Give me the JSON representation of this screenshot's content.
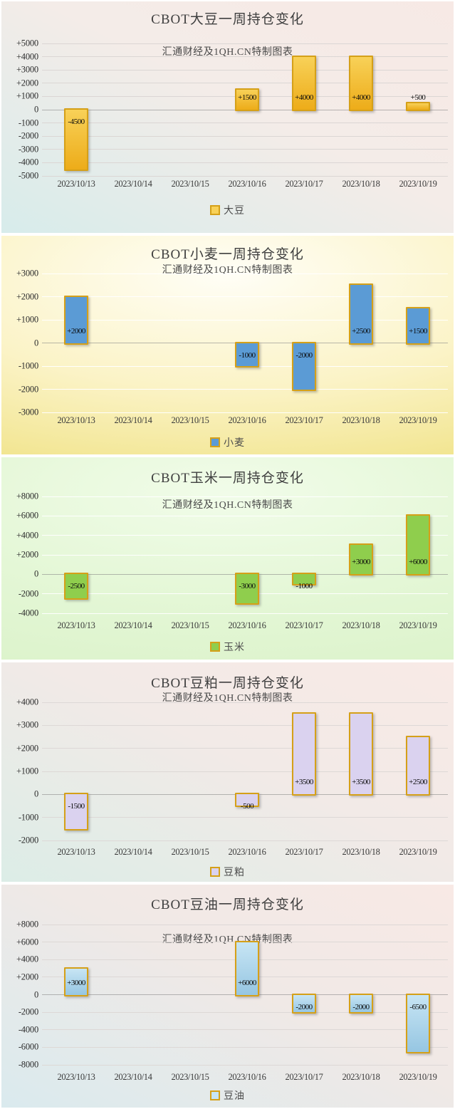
{
  "source_note": "汇通财经及1QH.CN特制图表",
  "chart_data": [
    {
      "type": "bar",
      "title": "CBOT大豆一周持仓变化",
      "subtitle": "汇通财经及1QH.CN特制图表",
      "legend": "大豆",
      "categories": [
        "2023/10/13",
        "2023/10/14",
        "2023/10/15",
        "2023/10/16",
        "2023/10/17",
        "2023/10/18",
        "2023/10/19"
      ],
      "values": [
        -4500,
        null,
        null,
        1500,
        4000,
        4000,
        500
      ],
      "data_labels": [
        "-4500",
        "",
        "",
        "+1500",
        "+4000",
        "+4000",
        "+500"
      ],
      "ylim": [
        -5000,
        5000
      ],
      "ytick_values": [
        5000,
        4000,
        3000,
        2000,
        1000,
        0,
        -1000,
        -2000,
        -3000,
        -4000,
        -5000
      ],
      "ytick_labels": [
        "+5000",
        "+4000",
        "+3000",
        "+2000",
        "+1000",
        "0",
        "-1000",
        "-2000",
        "-3000",
        "-4000",
        "-5000"
      ],
      "grid": true,
      "legend_position": "bottom",
      "colors": {
        "bar": [
          "#F8D158",
          "#EDAC19"
        ],
        "border": "#D5A018",
        "bg": {
          "style": "diagonal",
          "stops": [
            "#F7E9E5",
            "#F4ECE8",
            "#D7ECEB"
          ]
        }
      }
    },
    {
      "type": "bar",
      "title": "CBOT小麦一周持仓变化",
      "subtitle": "汇通财经及1QH.CN特制图表",
      "legend": "小麦",
      "categories": [
        "2023/10/13",
        "2023/10/14",
        "2023/10/15",
        "2023/10/16",
        "2023/10/17",
        "2023/10/18",
        "2023/10/19"
      ],
      "values": [
        2000,
        null,
        null,
        -1000,
        -2000,
        2500,
        1500
      ],
      "data_labels": [
        "+2000",
        "",
        "",
        "-1000",
        "-2000",
        "+2500",
        "+1500"
      ],
      "ylim": [
        -3000,
        3000
      ],
      "ytick_values": [
        3000,
        2000,
        1000,
        0,
        -1000,
        -2000,
        -3000
      ],
      "ytick_labels": [
        "+3000",
        "+2000",
        "+1000",
        "0",
        "-1000",
        "-2000",
        "-3000"
      ],
      "grid": true,
      "legend_position": "bottom",
      "colors": {
        "bar": [
          "#5B9BD5",
          "#5B9BD5"
        ],
        "border": "#D5A018",
        "bg": {
          "style": "radial",
          "stops": [
            "#FFFEF6",
            "#FBF3C6",
            "#F1E48C"
          ]
        }
      }
    },
    {
      "type": "bar",
      "title": "CBOT玉米一周持仓变化",
      "subtitle": "汇通财经及1QH.CN特制图表",
      "legend": "玉米",
      "categories": [
        "2023/10/13",
        "2023/10/14",
        "2023/10/15",
        "2023/10/16",
        "2023/10/17",
        "2023/10/18",
        "2023/10/19"
      ],
      "values": [
        -2500,
        null,
        null,
        -3000,
        -1000,
        3000,
        6000
      ],
      "data_labels": [
        "-2500",
        "",
        "",
        "-3000",
        "-1000",
        "+3000",
        "+6000"
      ],
      "ylim": [
        -4000,
        8000
      ],
      "ytick_values": [
        8000,
        6000,
        4000,
        2000,
        0,
        -2000,
        -4000
      ],
      "ytick_labels": [
        "+8000",
        "+6000",
        "+4000",
        "+2000",
        "0",
        "-2000",
        "-4000"
      ],
      "grid": true,
      "legend_position": "bottom",
      "colors": {
        "bar": [
          "#8FCE4D",
          "#8FCE4D"
        ],
        "border": "#D5A018",
        "bg": {
          "style": "radial",
          "stops": [
            "#F1FCE9",
            "#E4F7D6",
            "#DCF3CB"
          ]
        }
      }
    },
    {
      "type": "bar",
      "title": "CBOT豆粕一周持仓变化",
      "subtitle": "汇通财经及1QH.CN特制图表",
      "legend": "豆粕",
      "categories": [
        "2023/10/13",
        "2023/10/14",
        "2023/10/15",
        "2023/10/16",
        "2023/10/17",
        "2023/10/18",
        "2023/10/19"
      ],
      "values": [
        -1500,
        null,
        null,
        -500,
        3500,
        3500,
        2500
      ],
      "data_labels": [
        "-1500",
        "",
        "",
        "-500",
        "+3500",
        "+3500",
        "+2500"
      ],
      "ylim": [
        -2000,
        4000
      ],
      "ytick_values": [
        4000,
        3000,
        2000,
        1000,
        0,
        -1000,
        -2000
      ],
      "ytick_labels": [
        "+4000",
        "+3000",
        "+2000",
        "+1000",
        "0",
        "-1000",
        "-2000"
      ],
      "grid": true,
      "legend_position": "bottom",
      "colors": {
        "bar": [
          "#DAD2EF",
          "#DAD2EF"
        ],
        "border": "#D5A018",
        "bg": {
          "style": "diagonal",
          "stops": [
            "#F8EAE6",
            "#F2EAE7",
            "#DCEDE7"
          ]
        }
      }
    },
    {
      "type": "bar",
      "title": "CBOT豆油一周持仓变化",
      "subtitle": "汇通财经及1QH.CN特制图表",
      "legend": "豆油",
      "categories": [
        "2023/10/13",
        "2023/10/14",
        "2023/10/15",
        "2023/10/16",
        "2023/10/17",
        "2023/10/18",
        "2023/10/19"
      ],
      "values": [
        3000,
        null,
        null,
        6000,
        -2000,
        -2000,
        -6500
      ],
      "data_labels": [
        "+3000",
        "",
        "",
        "+6000",
        "-2000",
        "-2000",
        "-6500"
      ],
      "ylim": [
        -8000,
        8000
      ],
      "ytick_values": [
        8000,
        6000,
        4000,
        2000,
        0,
        -2000,
        -4000,
        -6000,
        -8000
      ],
      "ytick_labels": [
        "+8000",
        "+6000",
        "+4000",
        "+2000",
        "0",
        "-2000",
        "-4000",
        "-6000",
        "-8000"
      ],
      "grid": true,
      "legend_position": "bottom",
      "colors": {
        "bar": [
          "#C7E5F4",
          "#96C6E2"
        ],
        "border": "#D5A018",
        "bg": {
          "style": "diagonal",
          "stops": [
            "#F8E9E5",
            "#F0E9E6",
            "#DAEAEE"
          ]
        }
      }
    }
  ]
}
